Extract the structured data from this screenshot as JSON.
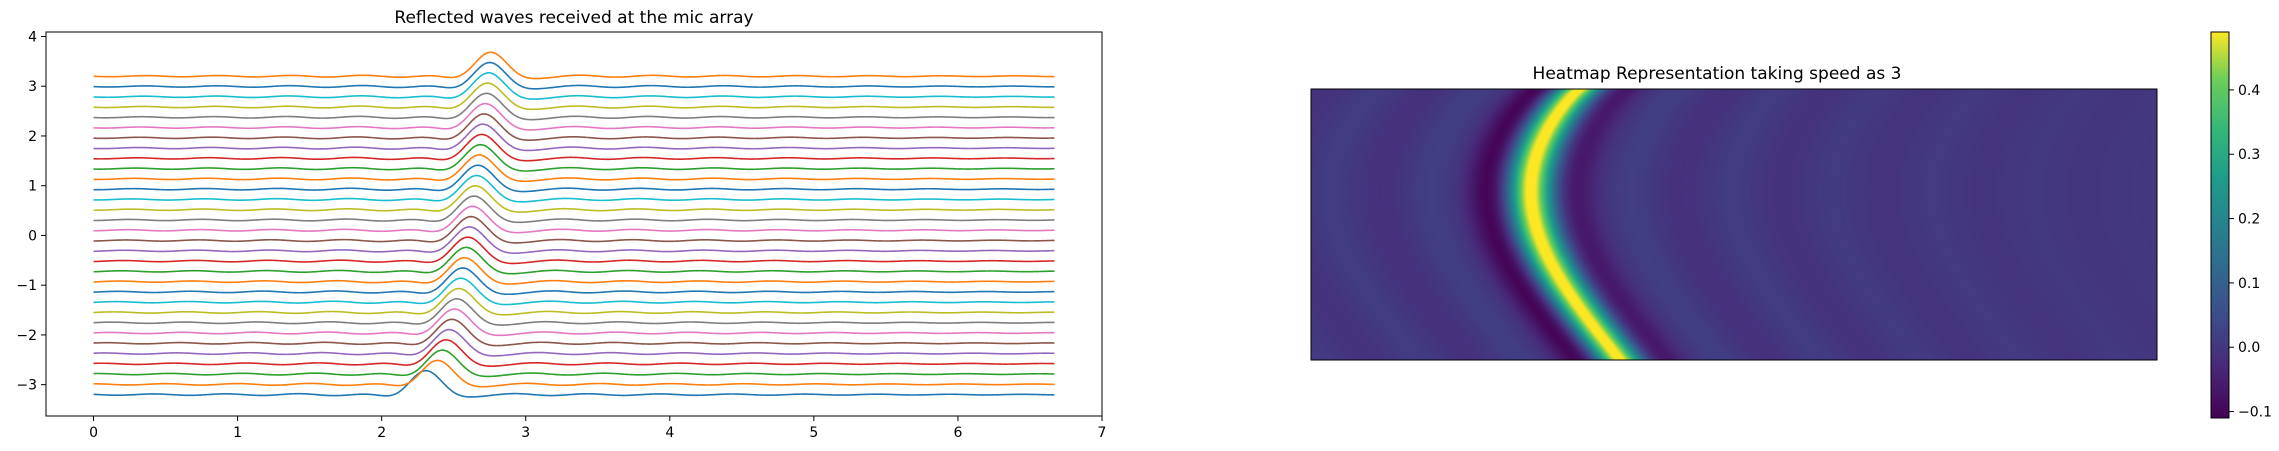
{
  "chart_data": [
    {
      "type": "line",
      "title": "Reflected waves received at the mic array",
      "xlabel": "",
      "ylabel": "",
      "xlim": [
        -0.33,
        7.0
      ],
      "ylim": [
        -3.63,
        4.09
      ],
      "xticks": [
        "0",
        "1",
        "2",
        "3",
        "4",
        "5",
        "6",
        "7"
      ],
      "yticks": [
        "−3",
        "−2",
        "−1",
        "0",
        "1",
        "2",
        "3",
        "4"
      ],
      "grid": false,
      "legend": "none",
      "x_range": [
        0,
        6.67
      ],
      "series_count": 32,
      "series_offsets": {
        "first": -3.2,
        "last": 3.2,
        "step": 0.2065
      },
      "pulse_center": {
        "bottom": 2.3,
        "top": 2.75
      },
      "pulse_amplitude": 0.48,
      "colors": [
        "#1f77b4",
        "#ff7f0e",
        "#2ca02c",
        "#d62728",
        "#9467bd",
        "#8c564b",
        "#e377c2",
        "#7f7f7f",
        "#bcbd22",
        "#17becf"
      ]
    },
    {
      "type": "heatmap",
      "title": "Heatmap Representation taking speed as 3",
      "colormap": "viridis",
      "colorbar": {
        "range": [
          -0.11,
          0.49
        ],
        "ticks": [
          "−0.1",
          "0.0",
          "0.1",
          "0.2",
          "0.3",
          "0.4"
        ]
      },
      "axes_ticks": "none"
    }
  ]
}
